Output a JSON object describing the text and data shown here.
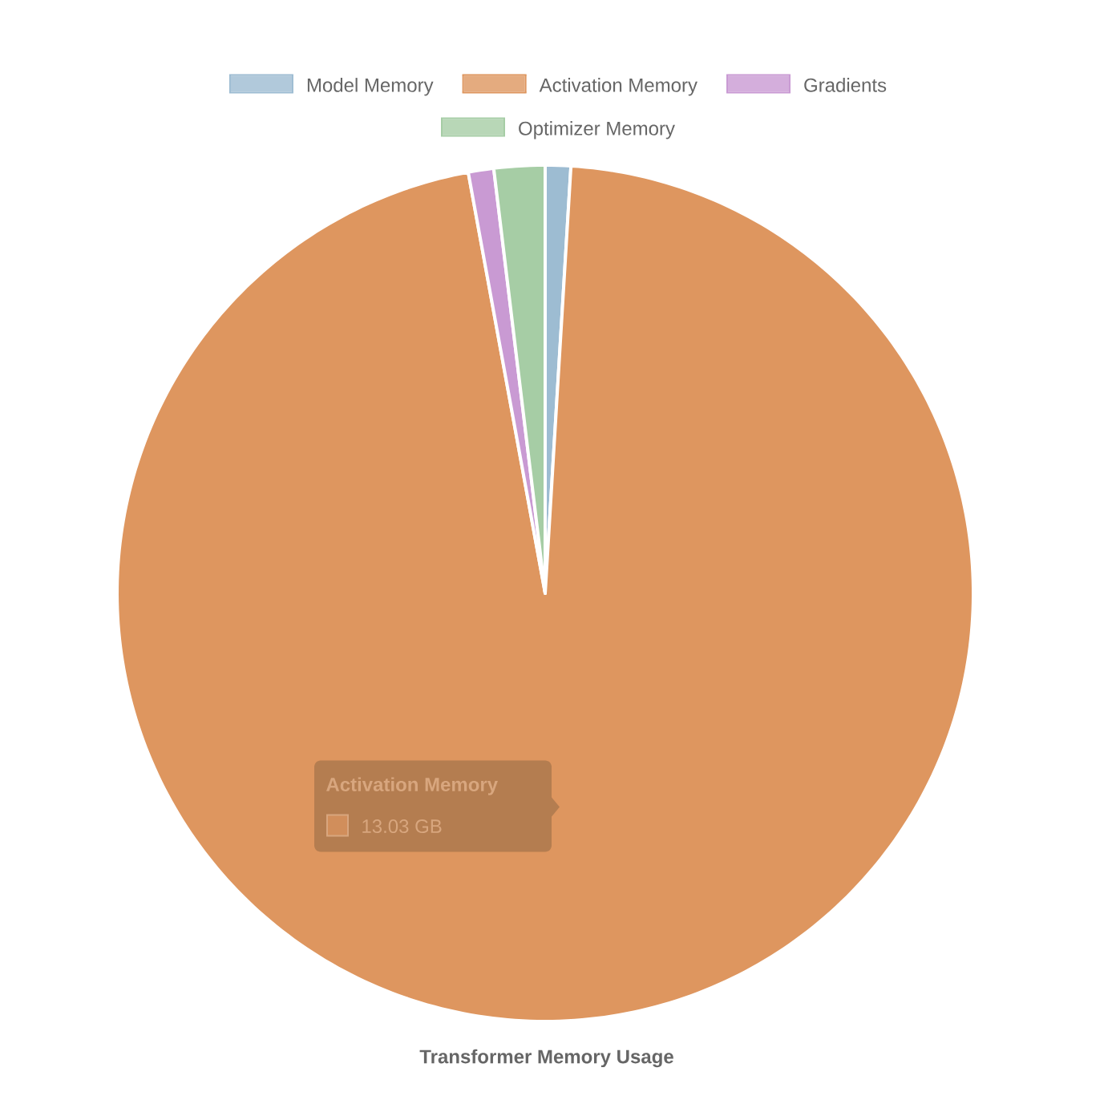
{
  "chart_data": {
    "type": "pie",
    "title": "Transformer Memory Usage",
    "categories": [
      "Model Memory",
      "Activation Memory",
      "Gradients",
      "Optimizer Memory"
    ],
    "values": [
      0.13,
      13.03,
      0.13,
      0.26
    ],
    "colors": [
      "#9dbcd2",
      "#de965f",
      "#c99ad3",
      "#a6cda5"
    ],
    "value_labels": [
      null,
      "13.03 GB",
      null,
      null
    ],
    "legend": "top"
  }
}
